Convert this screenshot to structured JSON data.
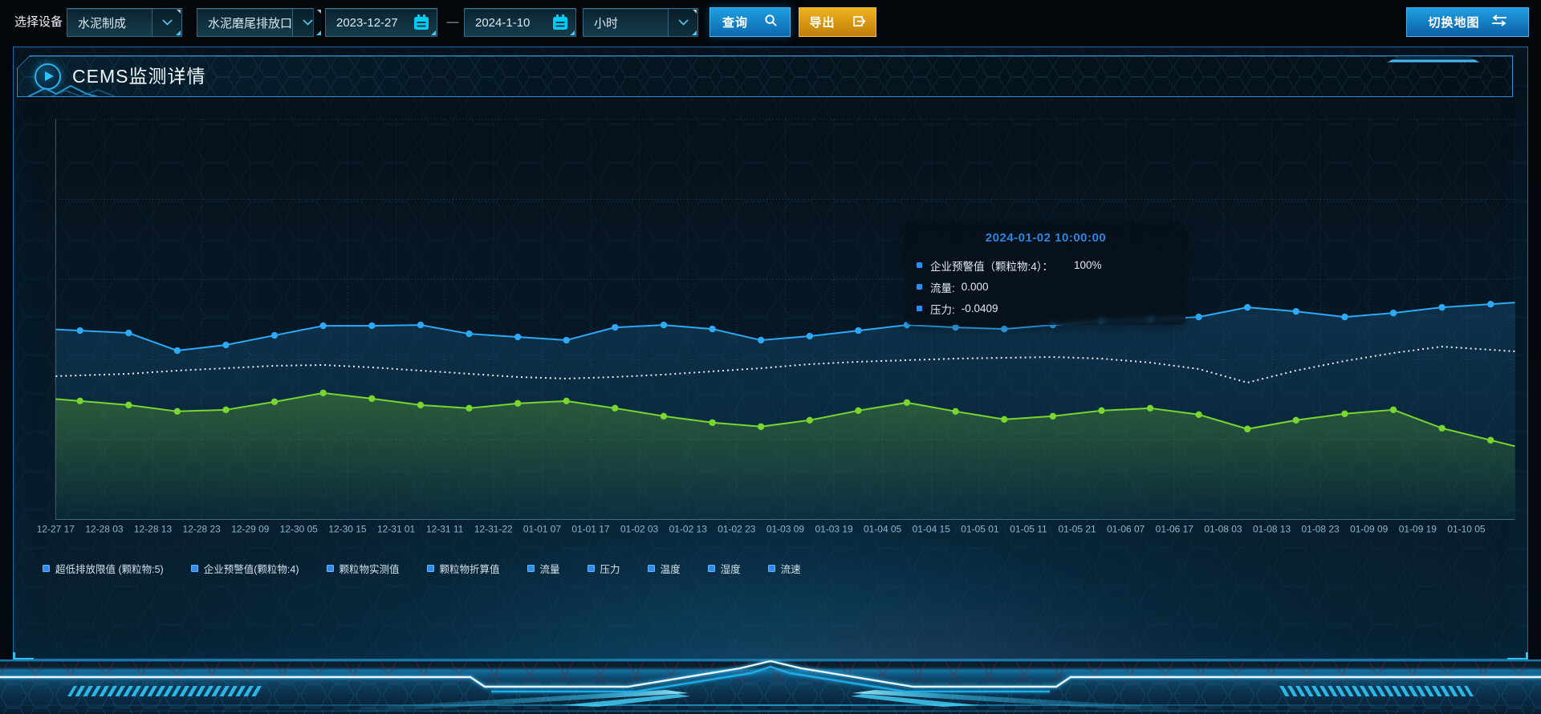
{
  "toolbar": {
    "device_label": "选择设备",
    "selects": {
      "device": "水泥制成",
      "outlet": "水泥磨尾排放口",
      "interval": "小时"
    },
    "date_range": {
      "start": "2023-12-27",
      "separator": "—",
      "end": "2024-1-10"
    },
    "query_label": "查询",
    "export_label": "导出",
    "switch_map_label": "切换地图"
  },
  "panel": {
    "title": "CEMS监测详情"
  },
  "tooltip": {
    "title": "2024-01-02 10:00:00",
    "marker_color": "#2d8cf0",
    "rows": [
      {
        "name": "企业预警值（颗粒物:4）：",
        "value": "100%"
      },
      {
        "name": "流量:",
        "value": "0.000"
      },
      {
        "name": "压力:",
        "value": "-0.0409"
      }
    ]
  },
  "legend": {
    "marker_color": "#2d8cf0",
    "items": [
      "超低排放限值 (颗粒物:5)",
      "企业预警值(颗粒物:4)",
      "颗粒物实测值",
      "颗粒物折算值",
      "流量",
      "压力",
      "温度",
      "湿度",
      "流速"
    ]
  },
  "chart_data": {
    "type": "line",
    "title": "",
    "xlabel": "",
    "ylabel": "",
    "y_axis_labels_visible": false,
    "grid": "dashed",
    "legend_position": "bottom",
    "units": "percent-of-plot-height (no y-axis labels shown; values estimated)",
    "x_categories": [
      "12-27 17",
      "12-28 03",
      "12-28 13",
      "12-28 23",
      "12-29 09",
      "12-30 05",
      "12-30 15",
      "12-31 01",
      "12-31 11",
      "12-31-22",
      "01-01 07",
      "01-01 17",
      "01-02 03",
      "01-02 13",
      "01-02 23",
      "01-03 09",
      "01-03 19",
      "01-04 05",
      "01-04 15",
      "01-05 01",
      "01-05 11",
      "01-05 21",
      "01-06 07",
      "01-06 17",
      "01-08 03",
      "01-08 13",
      "01-08 23",
      "01-09 09",
      "01-09 19",
      "01-10 05"
    ],
    "series": [
      {
        "name": "企业预警值(颗粒物:4)",
        "color": "#2ea9f5",
        "line_style": "solid",
        "markers": true,
        "area": true,
        "values_pct": [
          47.2,
          46.6,
          42.2,
          43.6,
          46.0,
          48.4,
          48.4,
          48.6,
          46.4,
          45.6,
          44.8,
          48.0,
          48.6,
          47.6,
          44.8,
          45.8,
          47.2,
          48.6,
          48.0,
          47.6,
          48.6,
          49.6,
          50.0,
          50.6,
          53.0,
          52.0,
          50.6,
          51.6,
          53.0,
          53.8
        ]
      },
      {
        "name": "流量",
        "color": "#e8eff3",
        "line_style": "dotted",
        "markers": false,
        "area": false,
        "values_pct": [
          36.0,
          36.4,
          37.2,
          37.8,
          38.4,
          38.6,
          38.0,
          37.2,
          36.4,
          35.6,
          35.2,
          35.6,
          36.2,
          37.0,
          37.8,
          38.8,
          39.4,
          39.8,
          40.2,
          40.4,
          40.6,
          40.2,
          39.2,
          37.6,
          34.2,
          37.2,
          39.6,
          41.6,
          43.2,
          42.4
        ]
      },
      {
        "name": "压力",
        "color": "#79d52f",
        "line_style": "solid",
        "markers": true,
        "area": true,
        "values_pct": [
          29.6,
          28.6,
          27.0,
          27.4,
          29.4,
          31.6,
          30.2,
          28.6,
          27.8,
          29.0,
          29.6,
          27.8,
          25.8,
          24.2,
          23.2,
          24.8,
          27.2,
          29.2,
          27.0,
          25.0,
          25.8,
          27.2,
          27.8,
          26.2,
          22.6,
          24.8,
          26.4,
          27.4,
          22.8,
          19.8
        ]
      }
    ]
  },
  "colors": {
    "accent_blue": "#2196f3",
    "button_blue": "#1287c8",
    "button_gold": "#e8a51b",
    "icon_cyan": "#00ccf5",
    "panel_border": "#1470a8",
    "grid_line": "rgba(125,175,200,0.28)",
    "x_label": "#8fb6ca"
  }
}
